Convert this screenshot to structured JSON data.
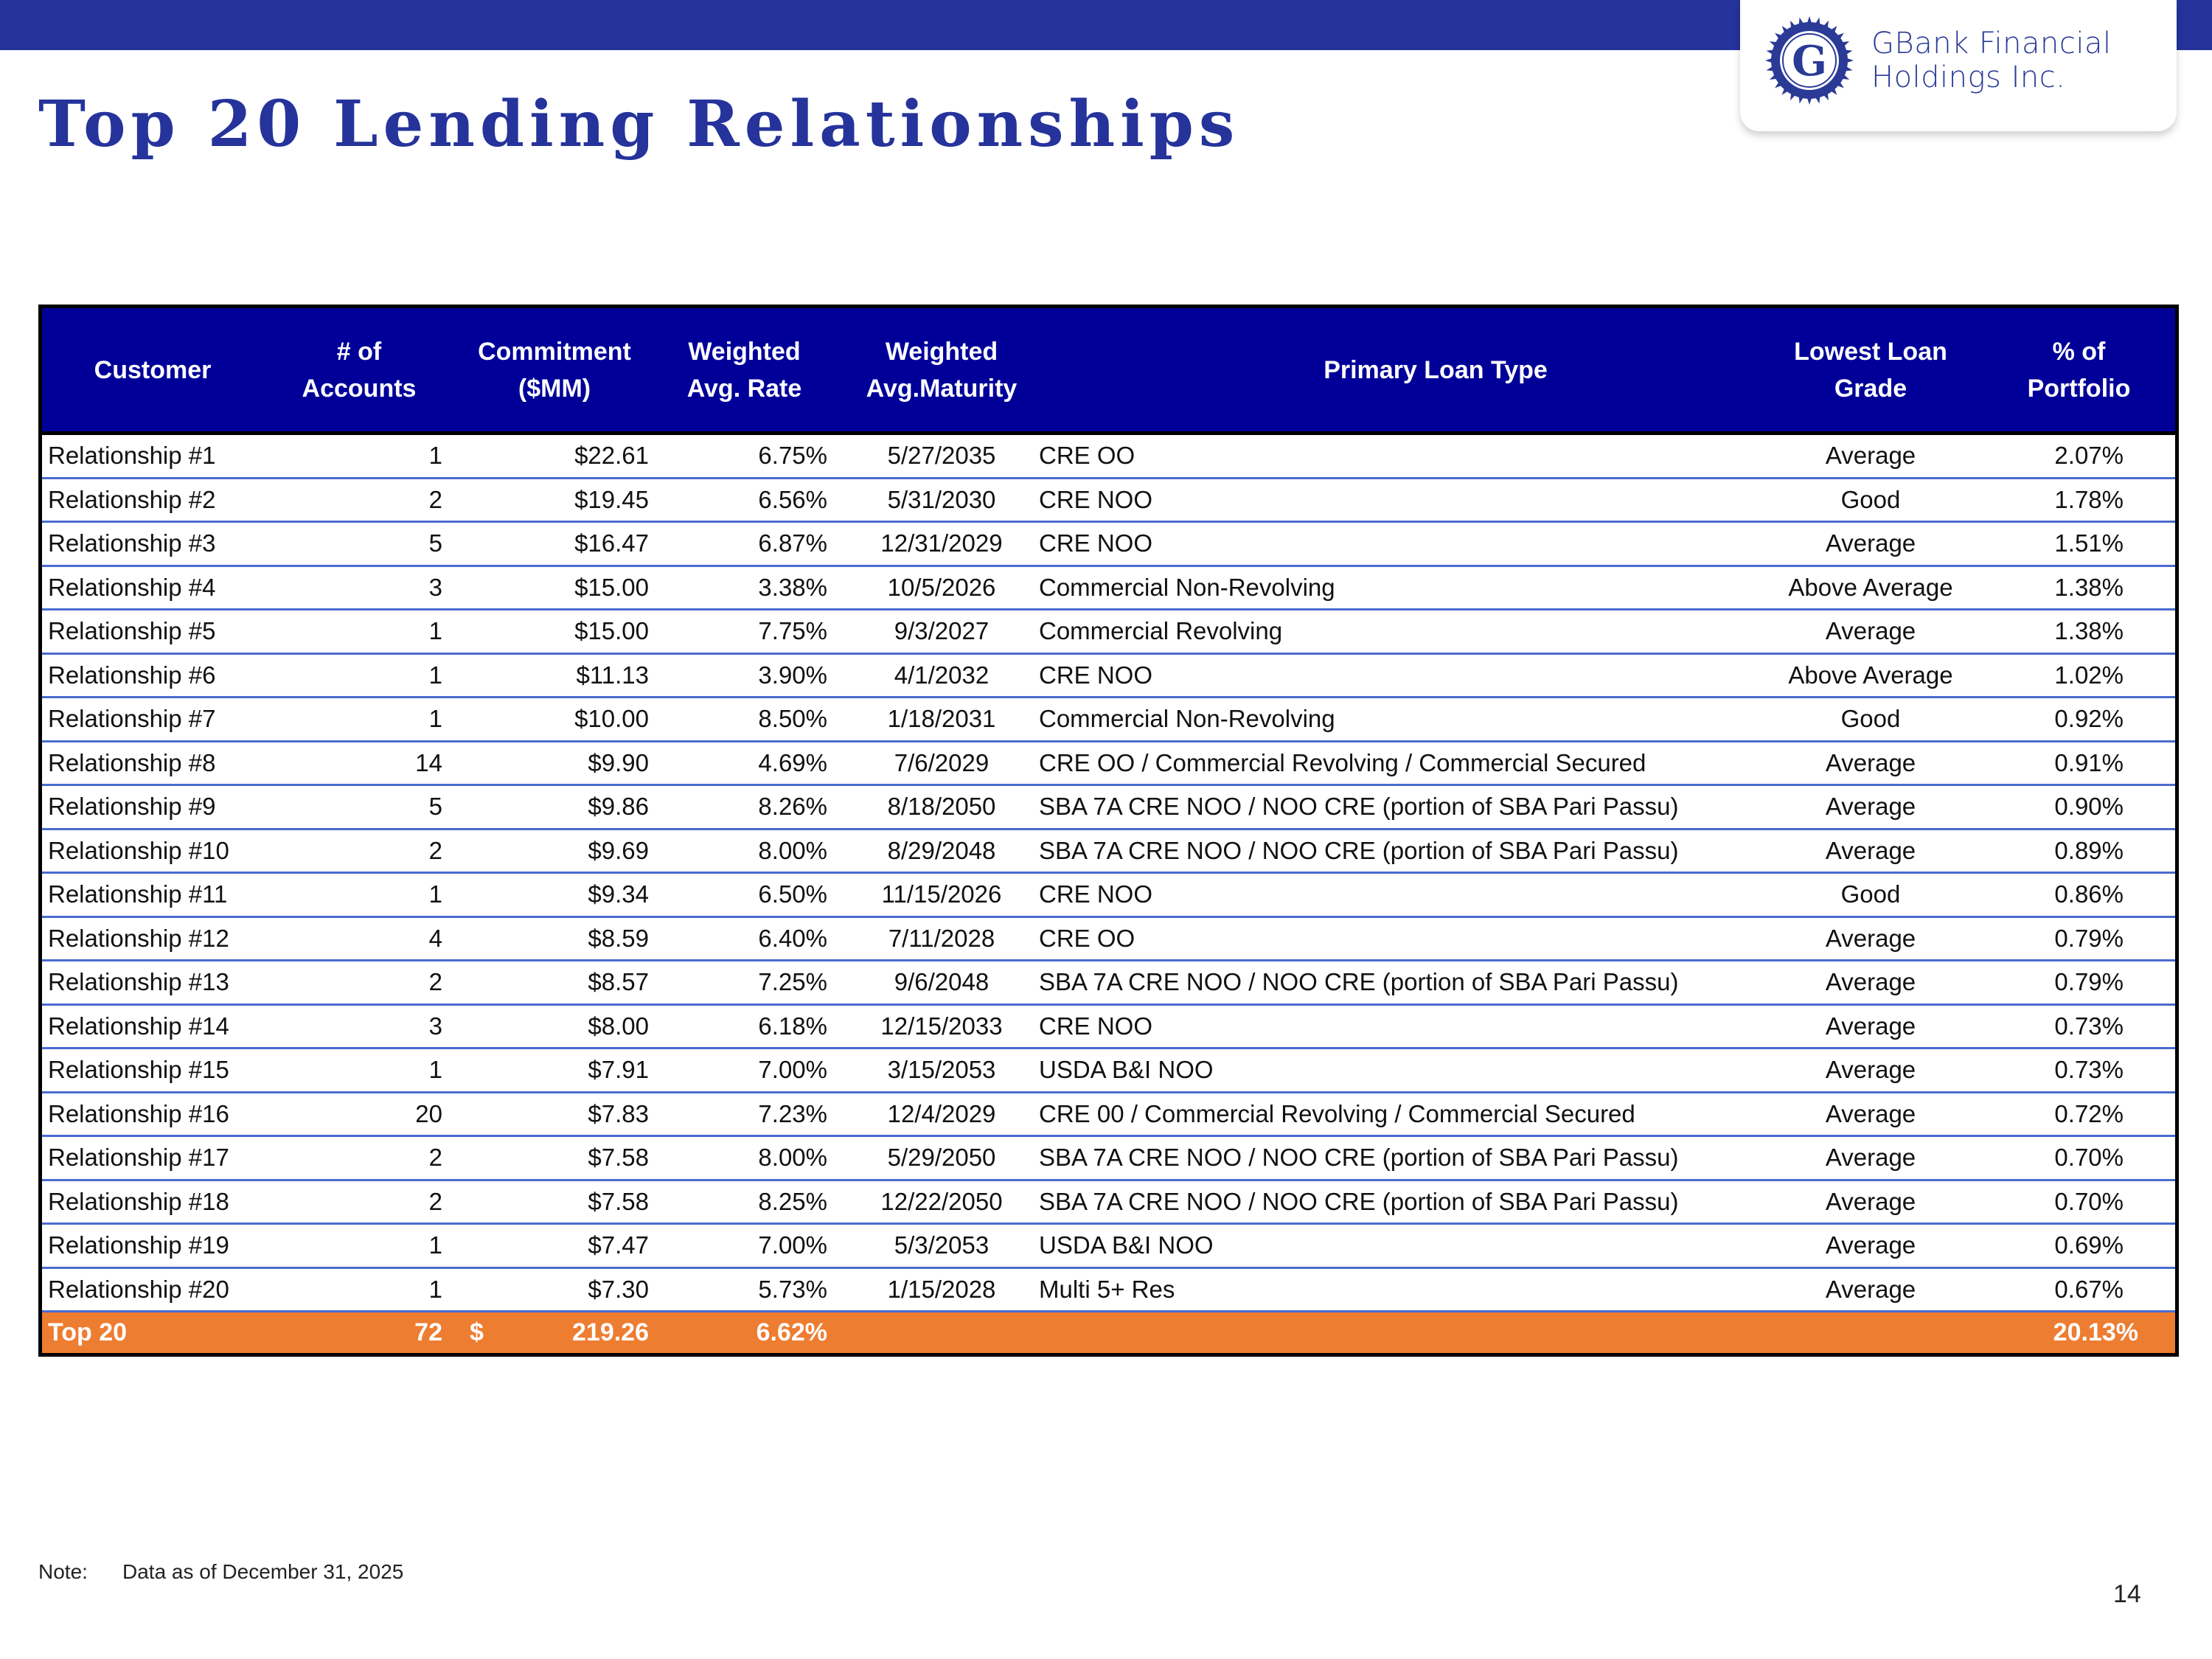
{
  "header": {
    "title": "Top 20 Lending Relationships",
    "bar_color": "#25339b"
  },
  "logo": {
    "icon": "gbank-seal-icon",
    "line1": "GBank Financial",
    "line2": "Holdings Inc."
  },
  "table": {
    "header_bg": "#000099",
    "total_bg": "#ed7d31",
    "columns": [
      "Customer",
      "# of\nAccounts",
      "Commitment\n($MM)",
      "Weighted\nAvg. Rate",
      "Weighted\nAvg.Maturity",
      "Primary Loan Type",
      "Lowest Loan\nGrade",
      "% of\nPortfolio"
    ],
    "rows": [
      {
        "customer": "Relationship #1",
        "accounts": "1",
        "commitment": "$22.61",
        "rate": "6.75%",
        "maturity": "5/27/2035",
        "loan_type": "CRE OO",
        "grade": "Average",
        "portfolio": "2.07%"
      },
      {
        "customer": "Relationship #2",
        "accounts": "2",
        "commitment": "$19.45",
        "rate": "6.56%",
        "maturity": "5/31/2030",
        "loan_type": "CRE NOO",
        "grade": "Good",
        "portfolio": "1.78%"
      },
      {
        "customer": "Relationship #3",
        "accounts": "5",
        "commitment": "$16.47",
        "rate": "6.87%",
        "maturity": "12/31/2029",
        "loan_type": "CRE NOO",
        "grade": "Average",
        "portfolio": "1.51%"
      },
      {
        "customer": "Relationship #4",
        "accounts": "3",
        "commitment": "$15.00",
        "rate": "3.38%",
        "maturity": "10/5/2026",
        "loan_type": "Commercial Non-Revolving",
        "grade": "Above Average",
        "portfolio": "1.38%"
      },
      {
        "customer": "Relationship #5",
        "accounts": "1",
        "commitment": "$15.00",
        "rate": "7.75%",
        "maturity": "9/3/2027",
        "loan_type": "Commercial Revolving",
        "grade": "Average",
        "portfolio": "1.38%"
      },
      {
        "customer": "Relationship #6",
        "accounts": "1",
        "commitment": "$11.13",
        "rate": "3.90%",
        "maturity": "4/1/2032",
        "loan_type": "CRE NOO",
        "grade": "Above Average",
        "portfolio": "1.02%"
      },
      {
        "customer": "Relationship #7",
        "accounts": "1",
        "commitment": "$10.00",
        "rate": "8.50%",
        "maturity": "1/18/2031",
        "loan_type": "Commercial Non-Revolving",
        "grade": "Good",
        "portfolio": "0.92%"
      },
      {
        "customer": "Relationship #8",
        "accounts": "14",
        "commitment": "$9.90",
        "rate": "4.69%",
        "maturity": "7/6/2029",
        "loan_type": "CRE OO / Commercial Revolving / Commercial Secured",
        "grade": "Average",
        "portfolio": "0.91%"
      },
      {
        "customer": "Relationship #9",
        "accounts": "5",
        "commitment": "$9.86",
        "rate": "8.26%",
        "maturity": "8/18/2050",
        "loan_type": "SBA 7A CRE NOO / NOO CRE (portion of SBA Pari Passu)",
        "grade": "Average",
        "portfolio": "0.90%"
      },
      {
        "customer": "Relationship #10",
        "accounts": "2",
        "commitment": "$9.69",
        "rate": "8.00%",
        "maturity": "8/29/2048",
        "loan_type": "SBA 7A CRE NOO / NOO CRE (portion of SBA Pari Passu)",
        "grade": "Average",
        "portfolio": "0.89%"
      },
      {
        "customer": "Relationship #11",
        "accounts": "1",
        "commitment": "$9.34",
        "rate": "6.50%",
        "maturity": "11/15/2026",
        "loan_type": "CRE NOO",
        "grade": "Good",
        "portfolio": "0.86%"
      },
      {
        "customer": "Relationship #12",
        "accounts": "4",
        "commitment": "$8.59",
        "rate": "6.40%",
        "maturity": "7/11/2028",
        "loan_type": "CRE OO",
        "grade": "Average",
        "portfolio": "0.79%"
      },
      {
        "customer": "Relationship #13",
        "accounts": "2",
        "commitment": "$8.57",
        "rate": "7.25%",
        "maturity": "9/6/2048",
        "loan_type": "SBA 7A CRE NOO / NOO CRE (portion of SBA Pari Passu)",
        "grade": "Average",
        "portfolio": "0.79%"
      },
      {
        "customer": "Relationship #14",
        "accounts": "3",
        "commitment": "$8.00",
        "rate": "6.18%",
        "maturity": "12/15/2033",
        "loan_type": "CRE NOO",
        "grade": "Average",
        "portfolio": "0.73%"
      },
      {
        "customer": "Relationship #15",
        "accounts": "1",
        "commitment": "$7.91",
        "rate": "7.00%",
        "maturity": "3/15/2053",
        "loan_type": "USDA B&I NOO",
        "grade": "Average",
        "portfolio": "0.73%"
      },
      {
        "customer": "Relationship #16",
        "accounts": "20",
        "commitment": "$7.83",
        "rate": "7.23%",
        "maturity": "12/4/2029",
        "loan_type": "CRE 00 / Commercial Revolving / Commercial Secured",
        "grade": "Average",
        "portfolio": "0.72%"
      },
      {
        "customer": "Relationship #17",
        "accounts": "2",
        "commitment": "$7.58",
        "rate": "8.00%",
        "maturity": "5/29/2050",
        "loan_type": "SBA 7A CRE NOO / NOO CRE (portion of SBA Pari Passu)",
        "grade": "Average",
        "portfolio": "0.70%"
      },
      {
        "customer": "Relationship #18",
        "accounts": "2",
        "commitment": "$7.58",
        "rate": "8.25%",
        "maturity": "12/22/2050",
        "loan_type": "SBA 7A CRE NOO / NOO CRE (portion of SBA Pari Passu)",
        "grade": "Average",
        "portfolio": "0.70%"
      },
      {
        "customer": "Relationship #19",
        "accounts": "1",
        "commitment": "$7.47",
        "rate": "7.00%",
        "maturity": "5/3/2053",
        "loan_type": "USDA B&I NOO",
        "grade": "Average",
        "portfolio": "0.69%"
      },
      {
        "customer": "Relationship #20",
        "accounts": "1",
        "commitment": "$7.30",
        "rate": "5.73%",
        "maturity": "1/15/2028",
        "loan_type": "Multi 5+ Res",
        "grade": "Average",
        "portfolio": "0.67%"
      }
    ],
    "total": {
      "label": "Top 20",
      "accounts": "72",
      "currency": "$",
      "commitment": "219.26",
      "rate": "6.62%",
      "portfolio": "20.13%"
    }
  },
  "footer": {
    "note_label": "Note:",
    "note_text": "Data as of December 31, 2025",
    "page_number": "14"
  }
}
